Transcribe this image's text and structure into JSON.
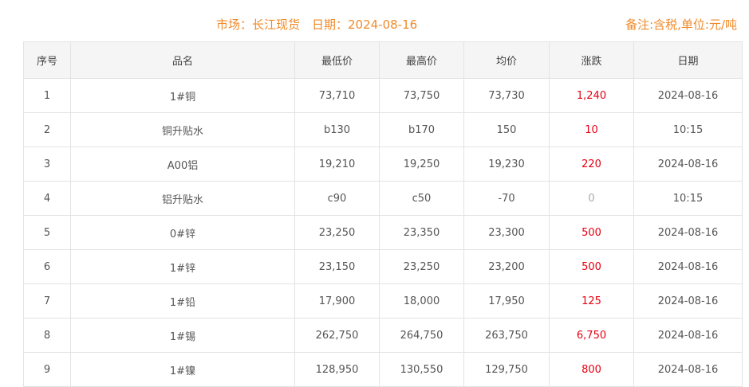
{
  "header": {
    "title": "市场：长江现货　日期：2024-08-16",
    "note": "备注:含税,单位:元/吨"
  },
  "colors": {
    "title": "#f08a2a",
    "up": "#e60012",
    "flat": "#aaaaaa"
  },
  "columns": [
    "序号",
    "品名",
    "最低价",
    "最高价",
    "均价",
    "涨跌",
    "日期"
  ],
  "rows": [
    [
      "1",
      "1#铜",
      "73,710",
      "73,750",
      "73,730",
      "1,240",
      "2024-08-16"
    ],
    [
      "2",
      "铜升贴水",
      "b130",
      "b170",
      "150",
      "10",
      "10:15"
    ],
    [
      "3",
      "A00铝",
      "19,210",
      "19,250",
      "19,230",
      "220",
      "2024-08-16"
    ],
    [
      "4",
      "铝升贴水",
      "c90",
      "c50",
      "-70",
      "0",
      "10:15"
    ],
    [
      "5",
      "0#锌",
      "23,250",
      "23,350",
      "23,300",
      "500",
      "2024-08-16"
    ],
    [
      "6",
      "1#锌",
      "23,150",
      "23,250",
      "23,200",
      "500",
      "2024-08-16"
    ],
    [
      "7",
      "1#铅",
      "17,900",
      "18,000",
      "17,950",
      "125",
      "2024-08-16"
    ],
    [
      "8",
      "1#锡",
      "262,750",
      "264,750",
      "263,750",
      "6,750",
      "2024-08-16"
    ],
    [
      "9",
      "1#镍",
      "128,950",
      "130,550",
      "129,750",
      "800",
      "2024-08-16"
    ]
  ]
}
